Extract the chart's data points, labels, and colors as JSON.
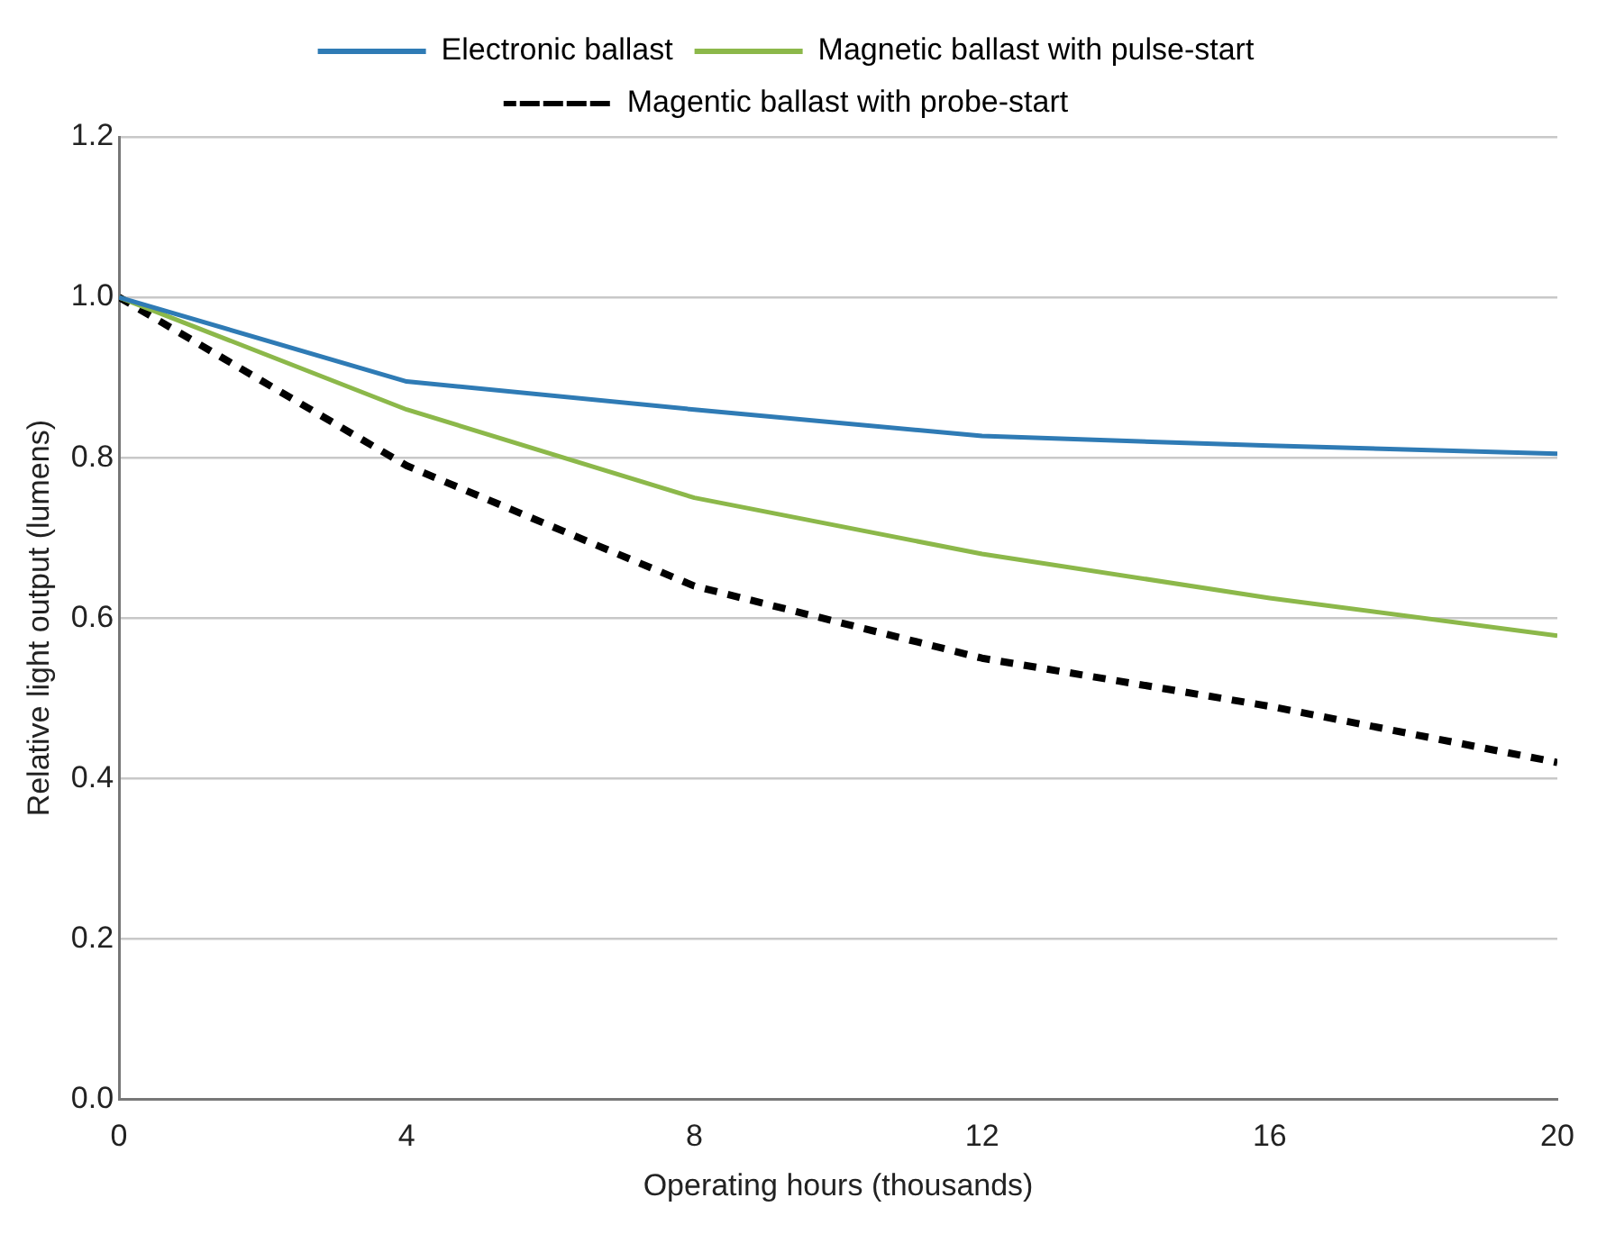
{
  "chart_data": {
    "type": "line",
    "xlabel": "Operating hours (thousands)",
    "ylabel": "Relative light output (lumens)",
    "x": [
      0,
      4,
      8,
      12,
      16,
      20
    ],
    "series": [
      {
        "name": "Electronic ballast",
        "color": "#2f7bb5",
        "values": [
          1.0,
          0.895,
          0.86,
          0.827,
          0.815,
          0.805
        ]
      },
      {
        "name": "Magnetic ballast with pulse-start",
        "color": "#8cb84a",
        "values": [
          1.0,
          0.86,
          0.75,
          0.68,
          0.625,
          0.578
        ]
      },
      {
        "name": "Magentic ballast with probe-start",
        "color": "#000000",
        "line_style": "dashed",
        "values": [
          1.0,
          0.79,
          0.64,
          0.55,
          0.49,
          0.42
        ]
      }
    ],
    "xlim": [
      0,
      20
    ],
    "xticks": [
      0,
      4,
      8,
      12,
      16,
      20
    ],
    "ylim": [
      0,
      1.2
    ],
    "yticks": [
      {
        "value": 0,
        "label": "0.0"
      },
      0.2,
      0.4,
      0.6,
      0.8,
      {
        "value": 1,
        "label": "1.0"
      },
      1.2
    ],
    "grid": "y",
    "legend": "top",
    "marker": "none"
  }
}
